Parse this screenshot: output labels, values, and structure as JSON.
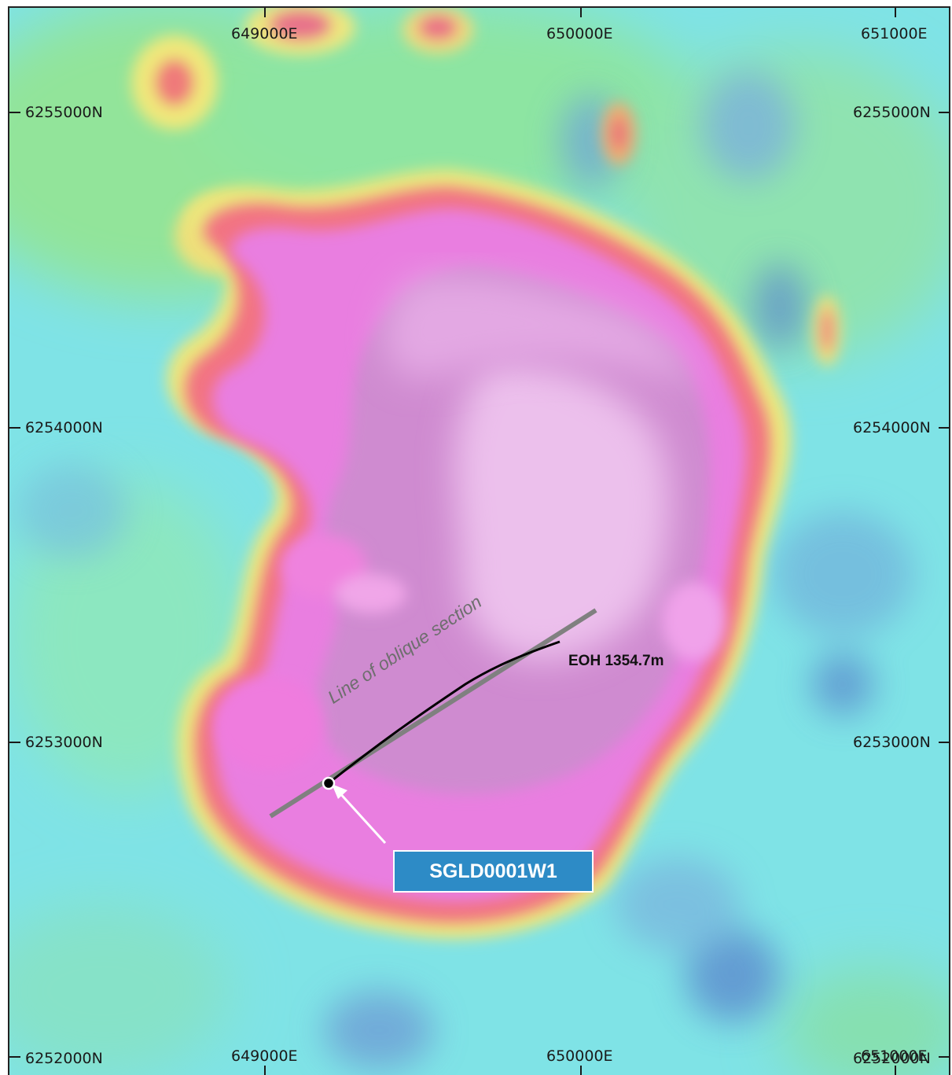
{
  "map": {
    "easting_labels_top": [
      "649000E",
      "650000E",
      "651000E"
    ],
    "easting_labels_bottom": [
      "649000E",
      "650000E",
      "651000E"
    ],
    "northing_labels_left": [
      "6255000N",
      "6254000N",
      "6253000N",
      "6252000N"
    ],
    "northing_labels_right": [
      "6255000N",
      "6254000N",
      "6253000N",
      "6252000N"
    ],
    "section_line_label": "Line of oblique section",
    "eoh_label": "EOH 1354.7m",
    "drillhole_callout": "SGLD0001W1",
    "colors": {
      "background_cyan": "#7fe6e8",
      "green": "#8fe89a",
      "yellow": "#eded7a",
      "red_halo": "#f2707f",
      "magenta": "#e87ad9",
      "pale_core": "#e9b8ea",
      "callout": "#2d8bc6",
      "section_line": "#808080",
      "drill_trace": "#000000"
    }
  }
}
